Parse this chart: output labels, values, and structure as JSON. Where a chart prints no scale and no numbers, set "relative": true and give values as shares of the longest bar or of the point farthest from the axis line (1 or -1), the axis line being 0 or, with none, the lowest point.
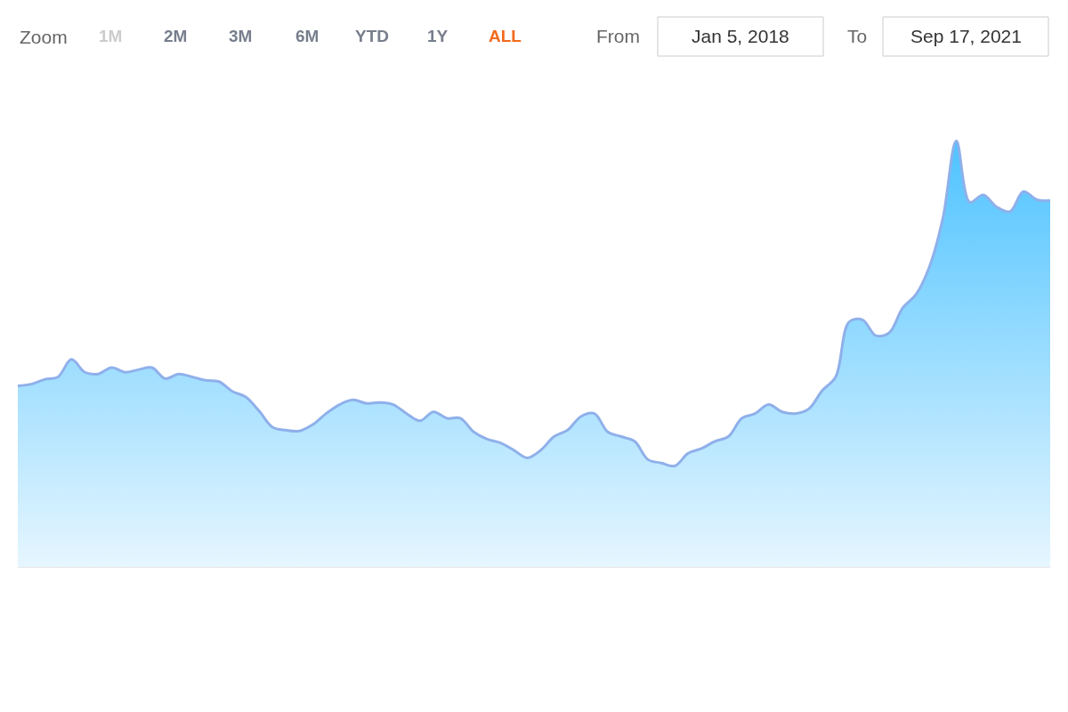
{
  "chart_data": {
    "type": "area",
    "relative": true,
    "annotations": [
      "Zoom",
      "1M",
      "2M",
      "3M",
      "6M",
      "YTD",
      "1Y",
      "ALL",
      "From",
      "Jan 5, 2018",
      "To",
      "Sep 17, 2021"
    ],
    "categories": [
      null,
      null,
      null,
      null,
      null,
      null,
      null,
      null,
      null,
      null,
      null,
      null,
      null,
      null,
      null,
      null,
      null,
      null,
      null,
      null,
      null,
      null,
      null,
      null,
      null,
      null,
      null,
      null,
      null,
      null,
      null,
      null,
      null,
      null,
      null,
      null,
      null,
      null,
      null,
      null,
      null,
      null,
      null,
      null,
      null,
      null,
      null,
      null,
      null,
      null,
      null,
      null,
      null,
      null,
      null,
      null,
      null,
      null,
      null,
      null,
      null,
      null,
      null,
      null,
      null,
      null,
      null,
      null,
      null,
      null,
      null,
      null,
      null,
      null,
      null,
      null,
      null,
      null
    ],
    "series": [
      {
        "color": "#4fc3ff",
        "values": [
          0.425,
          0.429,
          0.44,
          0.446,
          0.487,
          0.457,
          0.453,
          0.468,
          0.457,
          0.463,
          0.468,
          0.442,
          0.453,
          0.446,
          0.438,
          0.435,
          0.412,
          0.399,
          0.366,
          0.328,
          0.321,
          0.319,
          0.334,
          0.36,
          0.381,
          0.392,
          0.384,
          0.386,
          0.381,
          0.36,
          0.343,
          0.364,
          0.349,
          0.349,
          0.317,
          0.3,
          0.291,
          0.274,
          0.256,
          0.274,
          0.306,
          0.321,
          0.353,
          0.36,
          0.317,
          0.306,
          0.295,
          0.252,
          0.244,
          0.237,
          0.267,
          0.278,
          0.295,
          0.306,
          0.349,
          0.36,
          0.381,
          0.364,
          0.36,
          0.371,
          0.414,
          0.446,
          0.575,
          0.58,
          0.543,
          0.55,
          0.608,
          0.64,
          0.705,
          0.819,
          1.0,
          0.856,
          0.873,
          0.845,
          0.834,
          0.881,
          0.862,
          0.86
        ]
      }
    ]
  }
}
